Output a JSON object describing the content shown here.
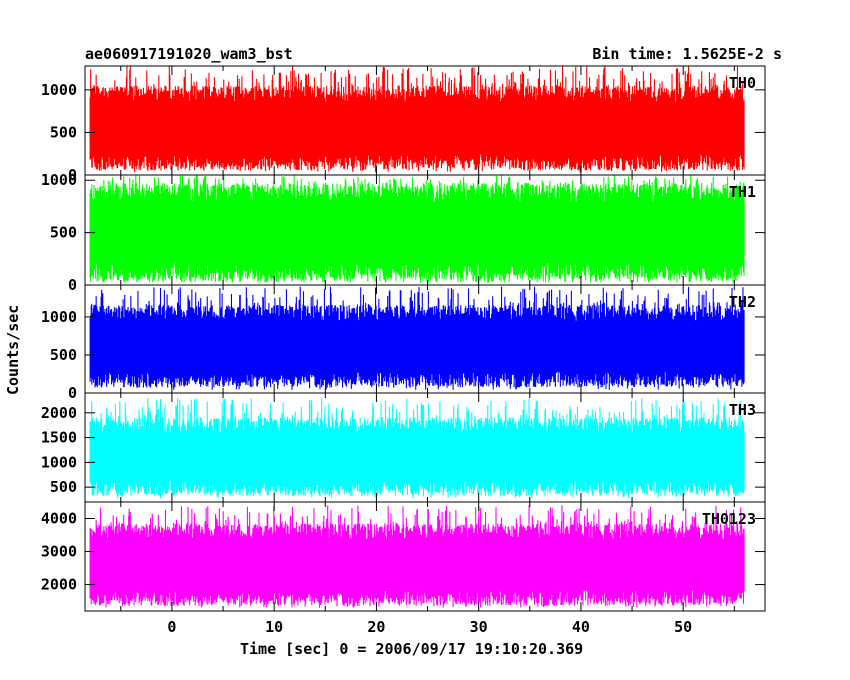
{
  "header": {
    "left_title": "ae060917191020_wam3_bst",
    "right_title": "Bin time: 1.5625E-2 s"
  },
  "chart_data": {
    "type": "line",
    "xlabel": "Time [sec] 0 = 2006/09/17 19:10:20.369",
    "ylabel": "Counts/sec",
    "xlim": [
      -8.5,
      58
    ],
    "x_data_range": [
      -8,
      56
    ],
    "xticks": [
      0,
      10,
      20,
      30,
      40,
      50
    ],
    "xtick_labels": [
      "0",
      "10",
      "20",
      "30",
      "40",
      "50"
    ],
    "grid": false,
    "panels": [
      {
        "name": "TH0",
        "color": "#ff0000",
        "ylim": [
          0,
          1280
        ],
        "yticks": [
          0,
          500,
          1000
        ],
        "ytick_labels": [
          "0",
          "500",
          "1000"
        ],
        "band_low": 150,
        "band_high": 950,
        "min": 30,
        "max": 1280
      },
      {
        "name": "TH1",
        "color": "#00ff00",
        "ylim": [
          0,
          1050
        ],
        "yticks": [
          0,
          500,
          1000
        ],
        "ytick_labels": [
          "0",
          "500",
          "1000"
        ],
        "band_low": 120,
        "band_high": 880,
        "min": 20,
        "max": 1050
      },
      {
        "name": "TH2",
        "color": "#0000ff",
        "ylim": [
          0,
          1420
        ],
        "yticks": [
          0,
          500,
          1000
        ],
        "ytick_labels": [
          "0",
          "500",
          "1000"
        ],
        "band_low": 180,
        "band_high": 1050,
        "min": 40,
        "max": 1400
      },
      {
        "name": "TH3",
        "color": "#00ffff",
        "ylim": [
          200,
          2400
        ],
        "yticks": [
          500,
          1000,
          1500,
          2000
        ],
        "ytick_labels": [
          "500",
          "1000",
          "1500",
          "2000"
        ],
        "band_low": 480,
        "band_high": 1750,
        "min": 270,
        "max": 2300
      },
      {
        "name": "TH0123",
        "color": "#ff00ff",
        "ylim": [
          1200,
          4500
        ],
        "yticks": [
          2000,
          3000,
          4000
        ],
        "ytick_labels": [
          "2000",
          "3000",
          "4000"
        ],
        "band_low": 1600,
        "band_high": 3600,
        "min": 1300,
        "max": 4400
      }
    ]
  }
}
